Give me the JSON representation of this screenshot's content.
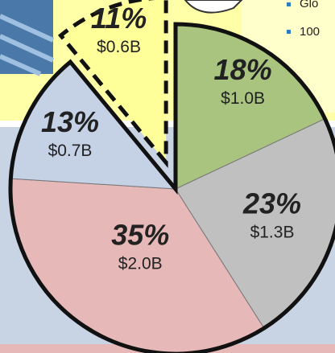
{
  "chart_data": {
    "type": "pie",
    "values": [
      18,
      23,
      35,
      13,
      11
    ],
    "value_labels": [
      "18%",
      "23%",
      "35%",
      "13%",
      "11%"
    ],
    "amounts": [
      "$1.0B",
      "$1.3B",
      "$2.0B",
      "$0.7B",
      "$0.6B"
    ],
    "colors": [
      "#a9c47f",
      "#c0c0c0",
      "#e6b8b8",
      "#c5d1e5",
      "#ffff99"
    ],
    "exploded": [
      false,
      false,
      false,
      false,
      true
    ],
    "bullets": [
      "Glo",
      "100"
    ]
  }
}
